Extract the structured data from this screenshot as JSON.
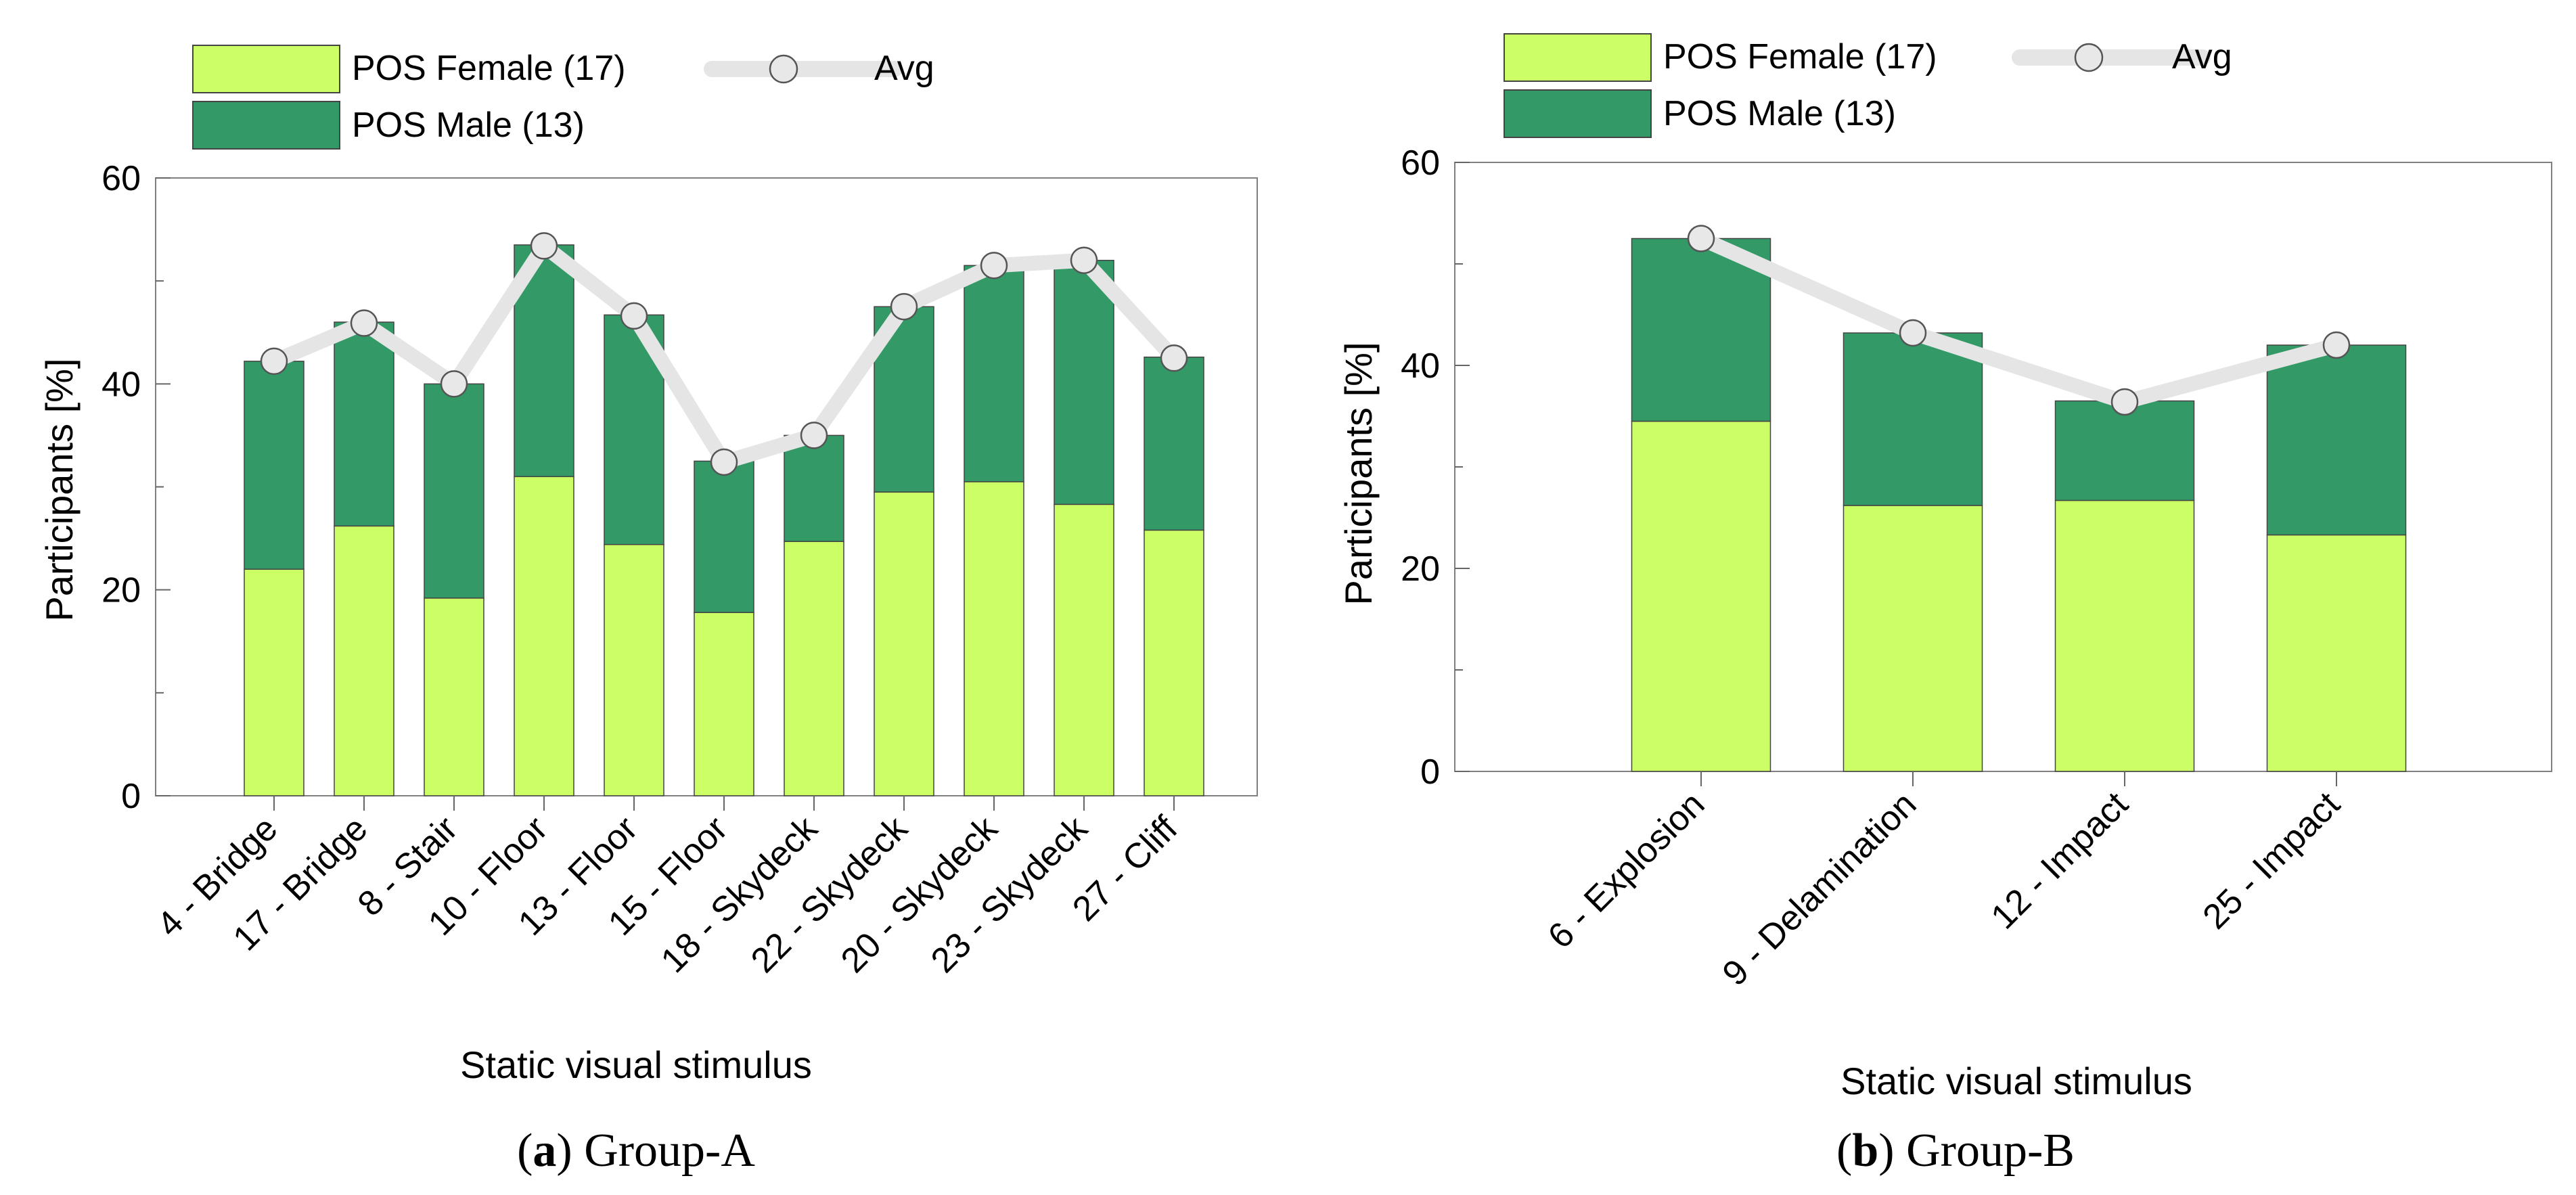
{
  "colors": {
    "female": "#ccff66",
    "male": "#339966",
    "avg_line": "#e5e5e5",
    "avg_marker": "#e8e8e8",
    "frame": "#808080",
    "bar_edge": "#444444"
  },
  "legend": {
    "female": "POS Female (17)",
    "male": "POS Male (13)",
    "avg": "Avg"
  },
  "caption_a": {
    "letter": "a",
    "text": " Group-A",
    "open": "(",
    "close": ")"
  },
  "caption_b": {
    "letter": "b",
    "text": " Group-B",
    "open": "(",
    "close": ")"
  },
  "chart_data": [
    {
      "type": "bar",
      "stacked": true,
      "title": "Group-A",
      "xlabel": "Static visual stimulus",
      "ylabel": "Participants  [%]",
      "ylim": [
        0,
        60
      ],
      "yticks": [
        0,
        20,
        40,
        60
      ],
      "yticks_minor": [
        10,
        30,
        50
      ],
      "categories": [
        "4 - Bridge",
        "17 - Bridge",
        "8 - Stair",
        "10 - Floor",
        "13 - Floor",
        "15 - Floor",
        "18 - Skydeck",
        "22 - Skydeck",
        "20 - Skydeck",
        "23 - Skydeck",
        "27 - Cliff"
      ],
      "series": [
        {
          "name": "POS Female (17)",
          "values": [
            22.0,
            26.2,
            19.2,
            31.0,
            24.4,
            17.8,
            24.7,
            29.5,
            30.5,
            28.3,
            25.8
          ]
        },
        {
          "name": "POS Male (13)",
          "values": [
            20.2,
            19.8,
            20.8,
            22.5,
            22.3,
            14.7,
            10.3,
            18.0,
            21.0,
            23.7,
            16.8
          ]
        }
      ],
      "avg": [
        42.2,
        45.9,
        40.0,
        53.4,
        46.6,
        32.4,
        35.0,
        47.5,
        51.5,
        52.0,
        42.5
      ],
      "legend": "top-left, outside plot"
    },
    {
      "type": "bar",
      "stacked": true,
      "title": "Group-B",
      "xlabel": "Static visual stimulus",
      "ylabel": "Participants  [%]",
      "ylim": [
        0,
        60
      ],
      "yticks": [
        0,
        20,
        40,
        60
      ],
      "yticks_minor": [
        10,
        30,
        50
      ],
      "categories": [
        "6 - Explosion",
        "9 - Delamination",
        "12 - Impact",
        "25 - Impact"
      ],
      "series": [
        {
          "name": "POS Female (17)",
          "values": [
            34.5,
            26.2,
            26.7,
            23.3
          ]
        },
        {
          "name": "POS Male (13)",
          "values": [
            18.0,
            17.0,
            9.8,
            18.7
          ]
        }
      ],
      "avg": [
        52.5,
        43.2,
        36.4,
        42.0
      ],
      "legend": "top-left, outside plot"
    }
  ]
}
